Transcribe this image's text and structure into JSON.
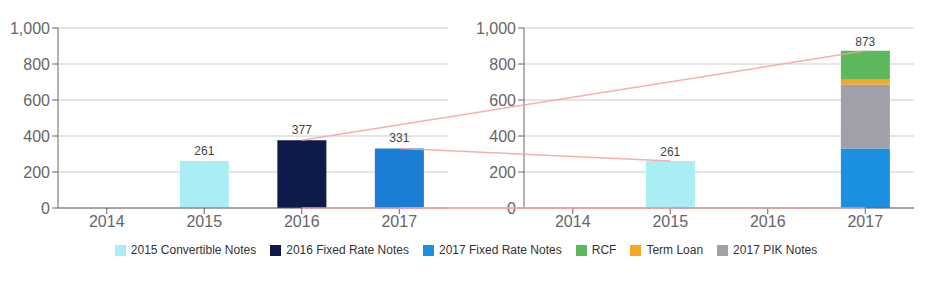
{
  "chart_data": [
    {
      "type": "bar",
      "categories": [
        2014,
        2015,
        2016,
        2017
      ],
      "values": [
        0,
        261,
        377,
        331
      ],
      "colors": [
        null,
        "#aaeef5",
        "#0d1a4a",
        "#1a7fd4"
      ],
      "value_labels": [
        null,
        "261",
        "377",
        "331"
      ],
      "ylim": [
        0,
        1000
      ],
      "yticks": [
        0,
        200,
        400,
        600,
        800,
        {
          "value": 1000,
          "label": "1,000"
        }
      ],
      "grid": true
    },
    {
      "type": "bar",
      "stacked": true,
      "categories": [
        2014,
        2015,
        2016,
        2017
      ],
      "series": [
        {
          "name": "2015 Convertible Notes",
          "color": "#aaeef5",
          "values": [
            0,
            261,
            0,
            0
          ]
        },
        {
          "name": "2017 Fixed Rate Notes",
          "color": "#1a90e0",
          "values": [
            0,
            0,
            0,
            331
          ]
        },
        {
          "name": "2017 PIK Notes",
          "color": "#a0a0a8",
          "values": [
            0,
            0,
            0,
            355
          ]
        },
        {
          "name": "Term Loan",
          "color": "#f5a623",
          "values": [
            0,
            0,
            0,
            30
          ]
        },
        {
          "name": "RCF",
          "color": "#5cb85c",
          "values": [
            0,
            0,
            0,
            157
          ]
        }
      ],
      "annotations": [
        {
          "x": 2015,
          "y": 261,
          "text": "261"
        },
        {
          "x": 2017,
          "y": 873,
          "text": "873"
        }
      ],
      "ylim": [
        0,
        1000
      ],
      "yticks": [
        0,
        200,
        400,
        600,
        800,
        {
          "value": 1000,
          "label": "1,000"
        }
      ],
      "grid": true
    }
  ],
  "legend_entries": [
    {
      "label": "2015 Convertible Notes",
      "color": "#aaeef5"
    },
    {
      "label": "2016 Fixed Rate Notes",
      "color": "#0d1a4a"
    },
    {
      "label": "2017 Fixed Rate Notes",
      "color": "#1a90e0"
    },
    {
      "label": "RCF",
      "color": "#5cb85c"
    },
    {
      "label": "Term Loan",
      "color": "#f5a623"
    },
    {
      "label": "2017 PIK Notes",
      "color": "#a0a0a8"
    }
  ],
  "connectors": {
    "color": "#f4a0a0",
    "pairs": [
      {
        "from": {
          "x": 2016,
          "y": 377
        },
        "to": {
          "x": 2017,
          "y": 873
        }
      },
      {
        "from": {
          "x": 2016,
          "y": 0
        },
        "to": {
          "x": 2017,
          "y": 0
        }
      },
      {
        "from": {
          "x": 2017,
          "y": 331
        },
        "to": {
          "x": 2015,
          "y": 261
        }
      },
      {
        "from": {
          "x": 2017,
          "y": 0
        },
        "to": {
          "x": 2015,
          "y": 0
        }
      }
    ]
  }
}
